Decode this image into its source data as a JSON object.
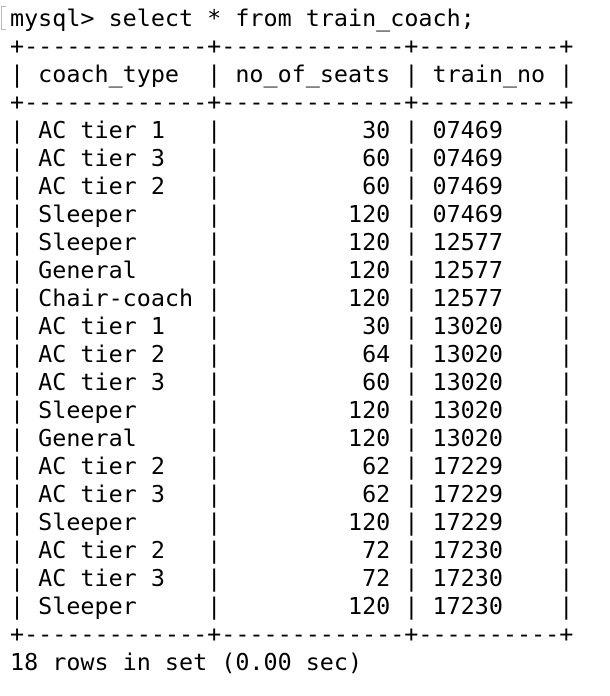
{
  "terminal": {
    "prompt": "mysql>",
    "command": "select * from train_coach;",
    "table": {
      "columns": [
        "coach_type",
        "no_of_seats",
        "train_no"
      ],
      "rows": [
        [
          "AC tier 1",
          "30",
          "07469"
        ],
        [
          "AC tier 3",
          "60",
          "07469"
        ],
        [
          "AC tier 2",
          "60",
          "07469"
        ],
        [
          "Sleeper",
          "120",
          "07469"
        ],
        [
          "Sleeper",
          "120",
          "12577"
        ],
        [
          "General",
          "120",
          "12577"
        ],
        [
          "Chair-coach",
          "120",
          "12577"
        ],
        [
          "AC tier 1",
          "30",
          "13020"
        ],
        [
          "AC tier 2",
          "64",
          "13020"
        ],
        [
          "AC tier 3",
          "60",
          "13020"
        ],
        [
          "Sleeper",
          "120",
          "13020"
        ],
        [
          "General",
          "120",
          "13020"
        ],
        [
          "AC tier 2",
          "62",
          "17229"
        ],
        [
          "AC tier 3",
          "62",
          "17229"
        ],
        [
          "Sleeper",
          "120",
          "17229"
        ],
        [
          "AC tier 2",
          "72",
          "17230"
        ],
        [
          "AC tier 3",
          "72",
          "17230"
        ],
        [
          "Sleeper",
          "120",
          "17230"
        ]
      ]
    },
    "summary": "18 rows in set (0.00 sec)"
  }
}
